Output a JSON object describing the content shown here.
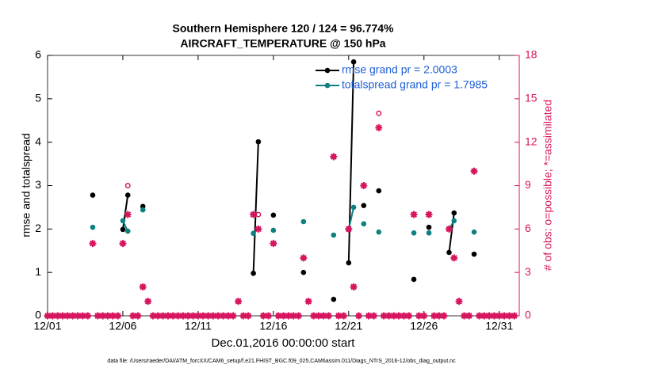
{
  "chart_data": {
    "type": "line",
    "title": [
      "Southern Hemisphere 120 / 124 = 96.774%",
      "AIRCRAFT_TEMPERATURE @ 150 hPa"
    ],
    "xlabel": "Dec.01,2016 00:00:00 start",
    "ylabel": "rmse and totalspread",
    "y2label": "# of obs: o=possible; *=assimilated",
    "footnote": "data file: /Users/raeder/DAI/ATM_forcXX/CAM6_setup/f.e21.FHIST_BGC.f09_025.CAM6assim.011/Diags_NTrS_2016-12/obs_diag_output.nc",
    "xlim": [
      0,
      31.33
    ],
    "ylim": [
      0,
      6
    ],
    "y2lim": [
      0,
      18
    ],
    "xticks": [
      {
        "value": 0,
        "label": "12/01"
      },
      {
        "value": 5,
        "label": "12/06"
      },
      {
        "value": 10,
        "label": "12/11"
      },
      {
        "value": 15,
        "label": "12/16"
      },
      {
        "value": 20,
        "label": "12/21"
      },
      {
        "value": 25,
        "label": "12/26"
      },
      {
        "value": 30,
        "label": "12/31"
      }
    ],
    "yticks": [
      0,
      1,
      2,
      3,
      4,
      5,
      6
    ],
    "y2ticks": [
      0,
      3,
      6,
      9,
      12,
      15,
      18
    ],
    "grid": false,
    "legend": "northeast",
    "x": [
      0,
      0.33,
      0.67,
      1,
      1.33,
      1.67,
      2,
      2.33,
      2.67,
      3,
      3.33,
      3.67,
      4,
      4.33,
      4.67,
      5,
      5.33,
      5.67,
      6,
      6.33,
      6.67,
      7,
      7.33,
      7.67,
      8,
      8.33,
      8.67,
      9,
      9.33,
      9.67,
      10,
      10.33,
      10.67,
      11,
      11.33,
      11.67,
      12,
      12.33,
      12.67,
      13,
      13.33,
      13.67,
      14,
      14.33,
      14.67,
      15,
      15.33,
      15.67,
      16,
      16.33,
      16.67,
      17,
      17.33,
      17.67,
      18,
      18.33,
      18.67,
      19,
      19.33,
      19.67,
      20,
      20.33,
      20.67,
      21,
      21.33,
      21.67,
      22,
      22.33,
      22.67,
      23,
      23.33,
      23.67,
      24,
      24.33,
      24.67,
      25,
      25.33,
      25.67,
      26,
      26.33,
      26.67,
      27,
      27.33,
      27.67,
      28,
      28.33,
      28.67,
      29,
      29.33,
      29.67,
      30,
      30.33,
      30.67,
      31
    ],
    "series": [
      {
        "name": "rmse grand pr = 2.0003",
        "color": "#000000",
        "marker": "dot",
        "line": true,
        "axis": "y",
        "values": [
          null,
          null,
          null,
          null,
          null,
          null,
          null,
          null,
          null,
          2.78,
          null,
          null,
          null,
          null,
          null,
          1.99,
          2.78,
          null,
          null,
          2.52,
          null,
          null,
          null,
          null,
          null,
          null,
          null,
          null,
          null,
          null,
          null,
          null,
          null,
          null,
          null,
          null,
          null,
          null,
          null,
          null,
          null,
          0.98,
          4.01,
          null,
          null,
          2.32,
          null,
          null,
          null,
          null,
          null,
          1.0,
          null,
          null,
          null,
          null,
          null,
          0.38,
          null,
          null,
          1.22,
          5.85,
          null,
          2.54,
          null,
          null,
          2.88,
          null,
          null,
          null,
          null,
          null,
          null,
          0.84,
          null,
          null,
          2.04,
          null,
          null,
          null,
          1.46,
          2.37,
          null,
          null,
          null,
          1.42,
          null,
          null,
          null,
          null,
          null,
          null,
          null,
          null
        ]
      },
      {
        "name": "totalspread grand pr = 1.7985",
        "color": "#0e8080",
        "marker": "dot",
        "line": true,
        "axis": "y",
        "values": [
          null,
          null,
          null,
          null,
          null,
          null,
          null,
          null,
          null,
          2.04,
          null,
          null,
          null,
          null,
          null,
          2.19,
          1.95,
          null,
          null,
          2.44,
          null,
          null,
          null,
          null,
          null,
          null,
          null,
          null,
          null,
          null,
          null,
          null,
          null,
          null,
          null,
          null,
          null,
          null,
          null,
          null,
          null,
          1.9,
          2.0,
          null,
          null,
          1.97,
          null,
          null,
          null,
          null,
          null,
          2.17,
          null,
          null,
          null,
          null,
          null,
          1.86,
          null,
          null,
          1.99,
          2.5,
          null,
          2.12,
          null,
          null,
          1.93,
          null,
          null,
          null,
          null,
          null,
          null,
          1.91,
          null,
          null,
          1.91,
          null,
          null,
          null,
          2.0,
          2.19,
          null,
          null,
          null,
          1.93,
          null,
          null,
          null,
          null,
          null,
          null,
          null,
          null
        ]
      },
      {
        "color": "#d6175f",
        "marker": "circle",
        "line": false,
        "axis": "y2",
        "values": [
          0,
          0,
          0,
          0,
          0,
          0,
          0,
          0,
          0,
          5,
          0,
          0,
          0,
          0,
          0,
          5,
          9,
          0,
          0,
          2,
          1,
          0,
          0,
          0,
          0,
          0,
          0,
          0,
          0,
          0,
          0,
          0,
          0,
          0,
          0,
          0,
          0,
          0,
          1,
          0,
          0,
          7,
          7,
          0,
          0,
          5,
          0,
          0,
          0,
          0,
          0,
          4,
          1,
          0,
          0,
          0,
          0,
          11,
          0,
          0,
          6,
          2,
          0,
          9,
          0,
          0,
          14,
          0,
          0,
          0,
          0,
          0,
          0,
          7,
          0,
          0,
          7,
          0,
          0,
          0,
          6,
          4,
          1,
          0,
          0,
          10,
          0,
          0,
          0,
          0,
          0,
          0,
          0,
          0
        ]
      },
      {
        "color": "#d6175f",
        "marker": "star",
        "line": false,
        "axis": "y2",
        "values": [
          0,
          0,
          0,
          0,
          0,
          0,
          0,
          0,
          0,
          5,
          0,
          0,
          0,
          0,
          0,
          5,
          7,
          0,
          0,
          2,
          1,
          0,
          0,
          0,
          0,
          0,
          0,
          0,
          0,
          0,
          0,
          0,
          0,
          0,
          0,
          0,
          0,
          0,
          1,
          0,
          0,
          7,
          6,
          0,
          0,
          5,
          0,
          0,
          0,
          0,
          0,
          4,
          1,
          0,
          0,
          0,
          0,
          11,
          0,
          0,
          6,
          2,
          0,
          9,
          0,
          0,
          13,
          0,
          0,
          0,
          0,
          0,
          0,
          7,
          0,
          0,
          7,
          0,
          0,
          0,
          6,
          4,
          1,
          0,
          0,
          10,
          0,
          0,
          0,
          0,
          0,
          0,
          0,
          0
        ]
      }
    ]
  }
}
